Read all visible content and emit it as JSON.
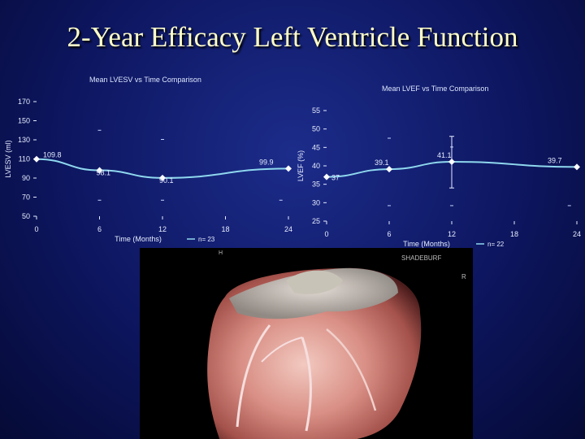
{
  "slide": {
    "title": "2-Year Efficacy Left Ventricle Function"
  },
  "colors": {
    "bg": "#0d1660",
    "title": "#ffffc8",
    "line": "#8fd8ee",
    "axis": "#ffffff",
    "point": "#ffffff"
  },
  "chart_data": [
    {
      "type": "line",
      "title": "Mean LVESV vs Time Comparison",
      "xlabel": "Time (Months)",
      "ylabel": "LVESV (ml)",
      "legend": "n= 23",
      "x": [
        0,
        6,
        12,
        18,
        24
      ],
      "xticks": [
        "0",
        "6",
        "12",
        "18",
        "24"
      ],
      "yticks": [
        "50",
        "70",
        "90",
        "110",
        "130",
        "150",
        "170"
      ],
      "ylim": [
        50,
        170
      ],
      "series": [
        {
          "x": [
            0,
            6,
            12,
            24
          ],
          "values": [
            109.8,
            98.1,
            90.1,
            99.9
          ],
          "labels": [
            "109.8",
            "98.1",
            "90.1",
            "99.9"
          ]
        }
      ],
      "grid": false
    },
    {
      "type": "line",
      "title": "Mean LVEF vs Time Comparison",
      "xlabel": "Time (Months)",
      "ylabel": "LVEF (%)",
      "legend": "n= 22",
      "x": [
        0,
        6,
        12,
        18,
        24
      ],
      "xticks": [
        "0",
        "6",
        "12",
        "18",
        "24"
      ],
      "yticks": [
        "25",
        "30",
        "35",
        "40",
        "45",
        "50",
        "55"
      ],
      "ylim": [
        25,
        55
      ],
      "series": [
        {
          "x": [
            0,
            6,
            12,
            24
          ],
          "values": [
            37,
            39.1,
            41.1,
            39.7
          ],
          "labels": [
            "37",
            "39.1",
            "41.1",
            "39.7"
          ]
        }
      ],
      "error_bar": {
        "x": 12,
        "low": 34,
        "high": 48
      },
      "grid": false
    }
  ],
  "image_panel": {
    "caption": "SHADEBURF",
    "marker_right": "R",
    "marker_top": "H"
  }
}
